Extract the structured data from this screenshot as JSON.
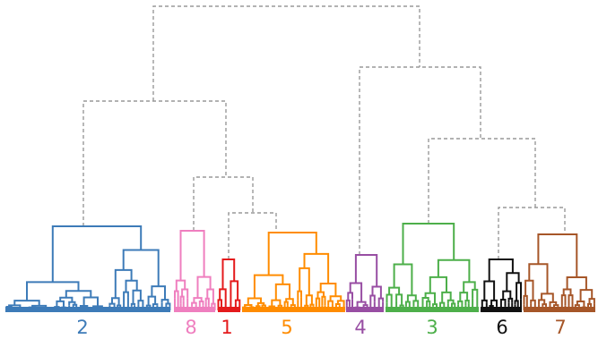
{
  "tree": {
    "line_colors": {
      "dashed": "#999999"
    },
    "clusters": [
      {
        "label": "2",
        "color": "#3d7bb8"
      },
      {
        "label": "8",
        "color": "#ef7fbf"
      },
      {
        "label": "1",
        "color": "#e41a1c"
      },
      {
        "label": "5",
        "color": "#ff8c00"
      },
      {
        "label": "4",
        "color": "#984ea3"
      },
      {
        "label": "3",
        "color": "#4daf4a"
      },
      {
        "label": "6",
        "color": "#111111"
      },
      {
        "label": "7",
        "color": "#a65628"
      }
    ]
  }
}
